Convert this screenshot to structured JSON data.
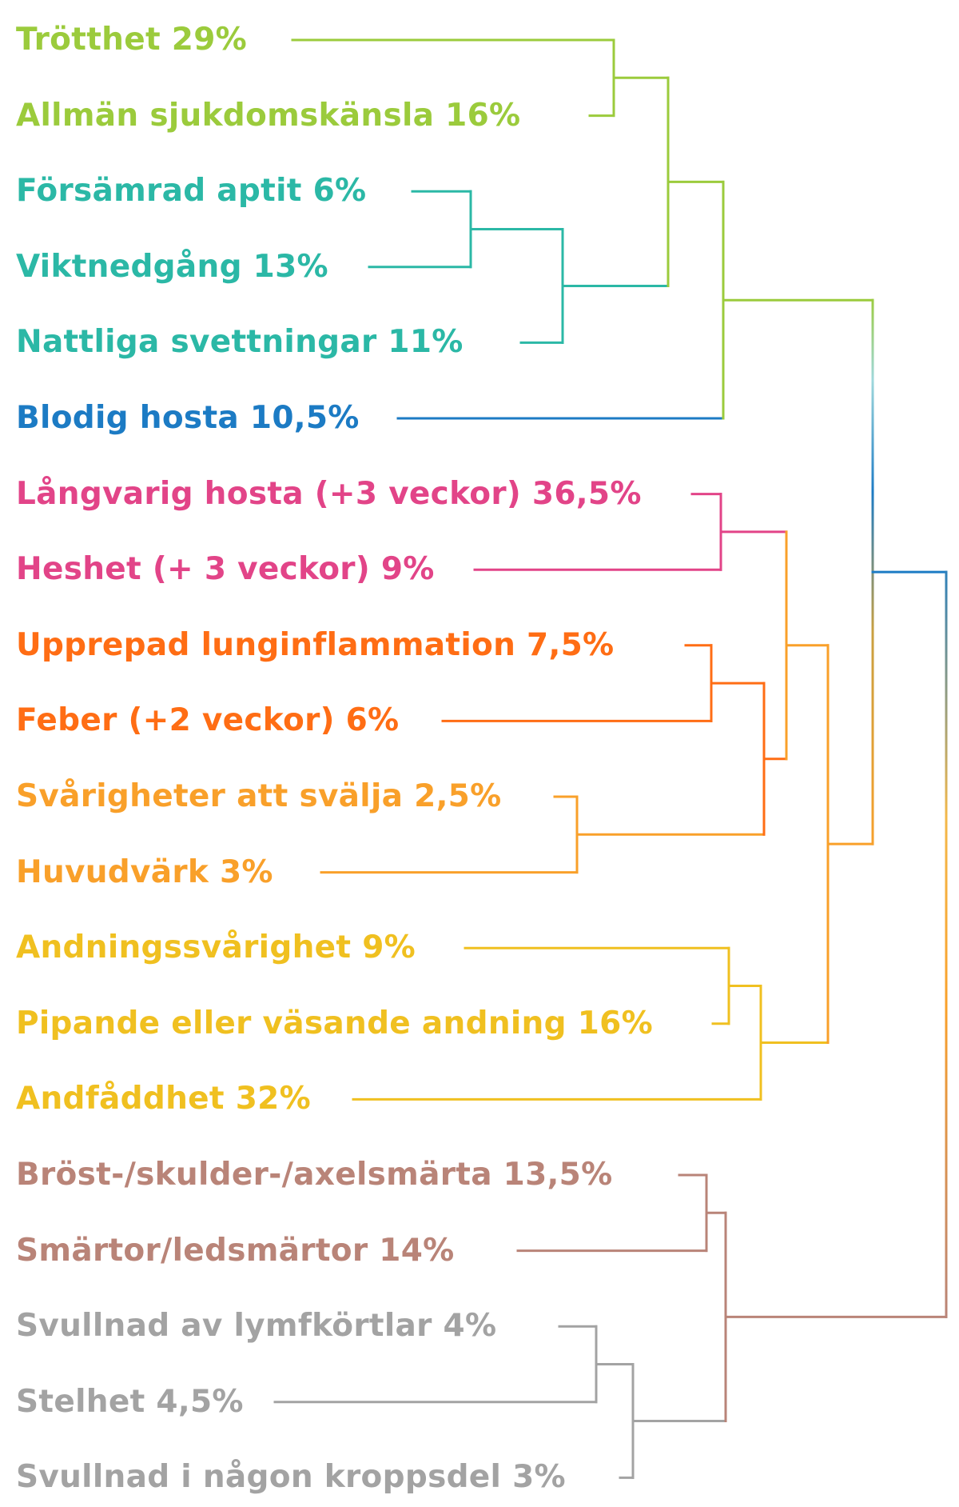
{
  "labels": [
    {
      "text": "Trötthet 29%",
      "color": "#9bcb3c"
    },
    {
      "text": "Allmän sjukdomskänsla 16%",
      "color": "#9bcb3c"
    },
    {
      "text": "Försämrad aptit 6%",
      "color": "#2bb8a6"
    },
    {
      "text": "Viktnedgång 13%",
      "color": "#2bb8a6"
    },
    {
      "text": "Nattliga svettningar 11%",
      "color": "#2bb8a6"
    },
    {
      "text": "Blodig hosta 10,5%",
      "color": "#1c7bc4"
    },
    {
      "text": "Långvarig hosta (+3 veckor) 36,5%",
      "color": "#e24488"
    },
    {
      "text": "Heshet (+ 3 veckor) 9%",
      "color": "#e24488"
    },
    {
      "text": "Upprepad lunginflammation 7,5%",
      "color": "#ff6d14"
    },
    {
      "text": "Feber (+2 veckor) 6%",
      "color": "#ff6d14"
    },
    {
      "text": "Svårigheter att svälja 2,5%",
      "color": "#f9a02a"
    },
    {
      "text": "Huvudvärk 3%",
      "color": "#f9a02a"
    },
    {
      "text": "Andningssvårighet 9%",
      "color": "#f0c020"
    },
    {
      "text": "Pipande eller väsande andning 16%",
      "color": "#f0c020"
    },
    {
      "text": "Andfåddhet 32%",
      "color": "#f0c020"
    },
    {
      "text": "Bröst-/skulder-/axelsmärta 13,5%",
      "color": "#b98478"
    },
    {
      "text": "Smärtor/ledsmärtor 14%",
      "color": "#b98478"
    },
    {
      "text": "Svullnad av lymfkörtlar 4%",
      "color": "#a3a3a3"
    },
    {
      "text": "Stelhet 4,5%",
      "color": "#a3a3a3"
    },
    {
      "text": "Svullnad i någon kroppsdel 3%",
      "color": "#a3a3a3"
    }
  ],
  "colors": {
    "green": "#9bcb3c",
    "teal": "#2bb8a6",
    "blue": "#1c7bc4",
    "pink": "#e24488",
    "orange": "#ff6d14",
    "light_orange": "#f9a02a",
    "yellow": "#f0c020",
    "brown": "#b98478",
    "gray": "#a3a3a3"
  }
}
